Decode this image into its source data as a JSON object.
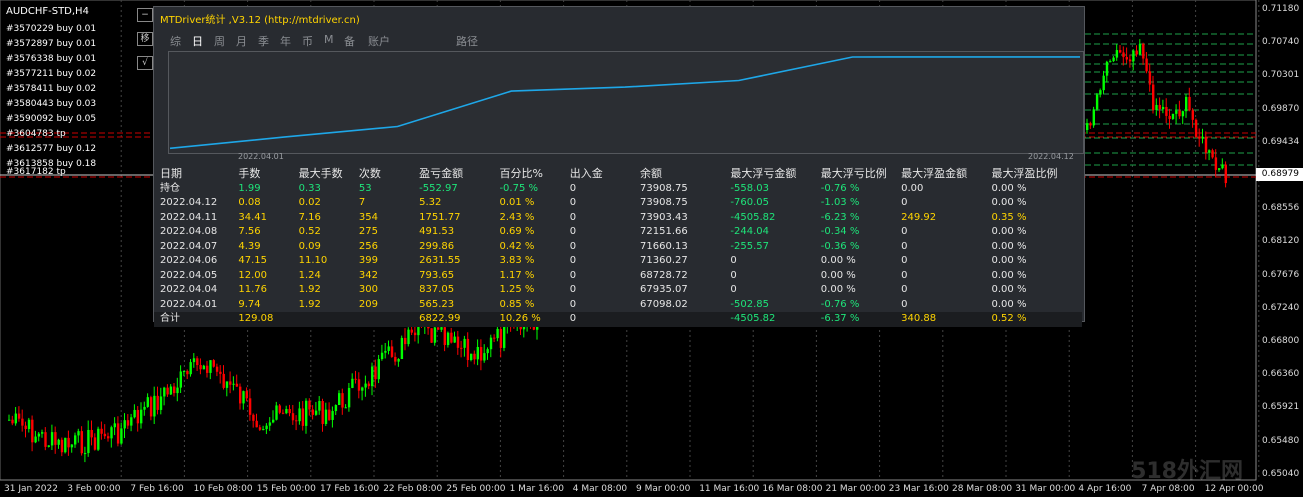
{
  "symbol": "AUDCHF-STD,H4",
  "orders": [
    "#3570229 buy 0.01",
    "#3572897 buy 0.01",
    "#3576338 buy 0.01",
    "#3577211 buy 0.02",
    "#3578411 buy 0.02",
    "#3580443 buy 0.03",
    "#3590092 buy 0.05",
    "#3604783 tp",
    "#3612577 buy 0.12",
    "#3613858 buy 0.18",
    "#3617182 tp"
  ],
  "price_axis": [
    "0.71180",
    "0.70740",
    "0.70301",
    "0.69870",
    "0.69434",
    "0.68979",
    "0.68556",
    "0.68120",
    "0.67676",
    "0.67240",
    "0.66800",
    "0.66360",
    "0.65921",
    "0.65480",
    "0.65040"
  ],
  "current_price": "0.68979",
  "time_axis": [
    "31 Jan 2022",
    "3 Feb 00:00",
    "7 Feb 16:00",
    "10 Feb 08:00",
    "15 Feb 00:00",
    "17 Feb 16:00",
    "22 Feb 08:00",
    "25 Feb 00:00",
    "1 Mar 16:00",
    "4 Mar 08:00",
    "9 Mar 00:00",
    "11 Mar 16:00",
    "16 Mar 08:00",
    "21 Mar 00:00",
    "23 Mar 16:00",
    "28 Mar 08:00",
    "31 Mar 00:00",
    "4 Apr 16:00",
    "7 Apr 08:00",
    "12 Apr 00:00"
  ],
  "panel": {
    "toggle": "−",
    "title": "MTDriver统计 ,V3.12 (http://mtdriver.cn)",
    "tabs": [
      "综",
      "日",
      "周",
      "月",
      "季",
      "年",
      "币",
      "M",
      "备",
      "账户",
      "路径"
    ],
    "date_start": "2022.04.01",
    "date_end": "2022.04.12",
    "headers": [
      "日期",
      "手数",
      "最大手数",
      "次数",
      "盈亏金额",
      "百分比%",
      "出入金",
      "余额",
      "最大浮亏金额",
      "最大浮亏比例",
      "最大浮盈金额",
      "最大浮盈比例"
    ],
    "rows": [
      [
        "持仓",
        "1.99",
        "0.33",
        "53",
        "-552.97",
        "-0.75 %",
        "0",
        "73908.75",
        "-558.03",
        "-0.76 %",
        "0.00",
        "0.00 %"
      ],
      [
        "2022.04.12",
        "0.08",
        "0.02",
        "7",
        "5.32",
        "0.01 %",
        "0",
        "73908.75",
        "-760.05",
        "-1.03 %",
        "0",
        "0.00 %"
      ],
      [
        "2022.04.11",
        "34.41",
        "7.16",
        "354",
        "1751.77",
        "2.43 %",
        "0",
        "73903.43",
        "-4505.82",
        "-6.23 %",
        "249.92",
        "0.35 %"
      ],
      [
        "2022.04.08",
        "7.56",
        "0.52",
        "275",
        "491.53",
        "0.69 %",
        "0",
        "72151.66",
        "-244.04",
        "-0.34 %",
        "0",
        "0.00 %"
      ],
      [
        "2022.04.07",
        "4.39",
        "0.09",
        "256",
        "299.86",
        "0.42 %",
        "0",
        "71660.13",
        "-255.57",
        "-0.36 %",
        "0",
        "0.00 %"
      ],
      [
        "2022.04.06",
        "47.15",
        "11.10",
        "399",
        "2631.55",
        "3.83 %",
        "0",
        "71360.27",
        "0",
        "0.00 %",
        "0",
        "0.00 %"
      ],
      [
        "2022.04.05",
        "12.00",
        "1.24",
        "342",
        "793.65",
        "1.17 %",
        "0",
        "68728.72",
        "0",
        "0.00 %",
        "0",
        "0.00 %"
      ],
      [
        "2022.04.04",
        "11.76",
        "1.92",
        "300",
        "837.05",
        "1.25 %",
        "0",
        "67935.07",
        "0",
        "0.00 %",
        "0",
        "0.00 %"
      ],
      [
        "2022.04.01",
        "9.74",
        "1.92",
        "209",
        "565.23",
        "0.85 %",
        "0",
        "67098.02",
        "-502.85",
        "-0.76 %",
        "0",
        "0.00 %"
      ]
    ],
    "total": [
      "合计",
      "129.08",
      "",
      "",
      "6822.99",
      "10.26 %",
      "0",
      "",
      "-4505.82",
      "-6.37 %",
      "340.88",
      "0.52 %"
    ]
  },
  "equity_curve": [
    67098.02,
    67935.07,
    68728.72,
    71360.27,
    71660.13,
    72151.66,
    73903.43,
    73908.75,
    73908.75
  ],
  "watermark": "518外汇网",
  "colors": {
    "bull": "#00ff00",
    "bear": "#ff0000",
    "panel": "#282b30",
    "curve": "#1ea7e8",
    "positive": "#1ee57a",
    "yellow": "#ffd400"
  }
}
